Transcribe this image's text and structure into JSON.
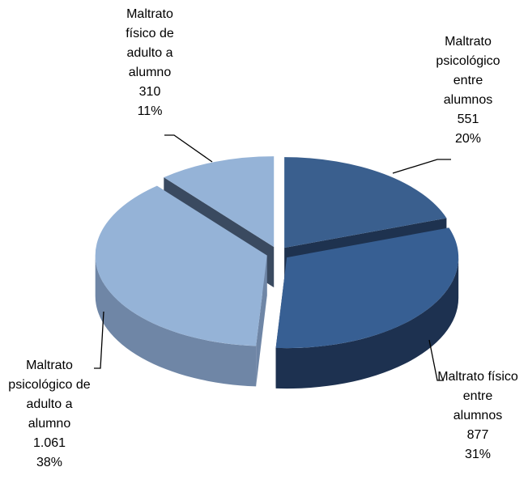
{
  "chart_data": {
    "type": "pie3d",
    "categories": [
      "Maltrato psicológico entre alumnos",
      "Maltrato físico entre alumnos",
      "Maltrato psicológico de adulto a alumno",
      "Maltrato físico de adulto a alumno"
    ],
    "values": [
      551,
      877,
      1061,
      310
    ],
    "value_labels": [
      "551",
      "877",
      "1.061",
      "310"
    ],
    "percents": [
      20,
      31,
      38,
      11
    ],
    "percent_labels": [
      "20%",
      "31%",
      "38%",
      "11%"
    ],
    "colors": [
      "#3a5f8e",
      "#375f93",
      "#95b3d7",
      "#95b3d7"
    ],
    "side_colors": [
      "#1e324f",
      "#1d3150",
      "#6f86a6",
      "#3a4a60"
    ]
  }
}
